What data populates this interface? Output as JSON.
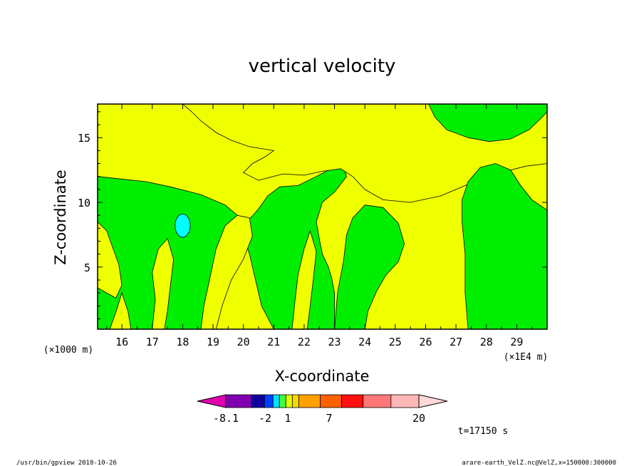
{
  "chart_data": {
    "type": "heatmap",
    "title": "vertical velocity",
    "xlabel": "X-coordinate",
    "ylabel": "Z-coordinate",
    "x_unit_note": "(×1E4 m)",
    "y_unit_note": "(×1000 m)",
    "xlim": [
      15.2,
      30.0
    ],
    "ylim": [
      0.2,
      17.6
    ],
    "x_ticks": [
      16,
      17,
      18,
      19,
      20,
      21,
      22,
      23,
      24,
      25,
      26,
      27,
      28,
      29
    ],
    "y_ticks": [
      5,
      10,
      15
    ],
    "grid": false,
    "background_color": "#f0ff00",
    "legend_placement": "bottom",
    "colorbar": {
      "levels": [
        -8.1,
        -2,
        1,
        7,
        20
      ],
      "level_labels": [
        "-8.1",
        "-2",
        "1",
        "7",
        "20"
      ],
      "colors": [
        "#e000b0",
        "#8000b0",
        "#1000a0",
        "#0040ff",
        "#00e0ff",
        "#40ff40",
        "#e0ff00",
        "#f8d800",
        "#ffa000",
        "#ff6000",
        "#ff1010",
        "#ff7878",
        "#ffb8b8",
        "#ffd8d8"
      ],
      "display_colors": {
        "negative_strong": "#00ffff",
        "weak_positive": "#00ee00",
        "weak_negative": "#f0ff00"
      }
    },
    "regions": [
      {
        "name": "upper-left-green",
        "value_band": "0 to 1",
        "color": "#00ee00",
        "polygon": [
          [
            15.2,
            17.6
          ],
          [
            15.2,
            12.0
          ],
          [
            16.0,
            11.8
          ],
          [
            16.8,
            11.6
          ],
          [
            17.6,
            11.2
          ],
          [
            18.6,
            10.6
          ],
          [
            19.4,
            9.8
          ],
          [
            19.8,
            9.0
          ],
          [
            20.2,
            8.7
          ],
          [
            20.5,
            9.5
          ],
          [
            20.8,
            10.5
          ],
          [
            21.2,
            11.2
          ],
          [
            21.8,
            11.3
          ],
          [
            22.4,
            12.0
          ],
          [
            22.8,
            12.5
          ],
          [
            23.3,
            12.7
          ],
          [
            23.4,
            12.0
          ],
          [
            23.0,
            10.8
          ],
          [
            22.6,
            10.0
          ],
          [
            22.4,
            8.5
          ],
          [
            22.5,
            7.2
          ],
          [
            22.6,
            6.0
          ],
          [
            22.8,
            5.0
          ],
          [
            22.9,
            4.2
          ],
          [
            23.0,
            3.0
          ],
          [
            23.0,
            0.2
          ],
          [
            21.0,
            0.2
          ],
          [
            20.6,
            2.0
          ],
          [
            20.4,
            4.0
          ],
          [
            20.2,
            6.0
          ],
          [
            20.0,
            7.5
          ],
          [
            19.8,
            7.8
          ],
          [
            19.4,
            6.5
          ],
          [
            19.2,
            5.0
          ],
          [
            19.0,
            3.0
          ],
          [
            18.6,
            0.2
          ],
          [
            15.2,
            0.2
          ]
        ]
      },
      {
        "name": "upper-middle-yellow",
        "value_band": "-1 to 0",
        "color": "#f0ff00",
        "polygon": [
          [
            18.0,
            17.6
          ],
          [
            18.3,
            17.0
          ],
          [
            18.6,
            16.3
          ],
          [
            19.1,
            15.4
          ],
          [
            19.6,
            14.8
          ],
          [
            20.2,
            14.3
          ],
          [
            21.0,
            14.0
          ],
          [
            20.7,
            13.5
          ],
          [
            20.3,
            13.0
          ],
          [
            20.0,
            12.3
          ],
          [
            20.5,
            11.7
          ],
          [
            21.3,
            12.2
          ],
          [
            22.0,
            12.1
          ],
          [
            22.6,
            12.4
          ],
          [
            23.2,
            12.6
          ],
          [
            23.6,
            12.0
          ],
          [
            24.0,
            11.0
          ],
          [
            24.6,
            10.2
          ],
          [
            25.5,
            10.0
          ],
          [
            26.5,
            10.5
          ],
          [
            27.5,
            11.5
          ],
          [
            28.3,
            12.2
          ],
          [
            29.3,
            12.8
          ],
          [
            30.0,
            13.0
          ],
          [
            30.0,
            17.6
          ]
        ]
      },
      {
        "name": "top-right-green",
        "value_band": "0 to 1",
        "color": "#00ee00",
        "polygon": [
          [
            26.1,
            17.6
          ],
          [
            26.3,
            16.6
          ],
          [
            26.7,
            15.6
          ],
          [
            27.4,
            15.0
          ],
          [
            28.1,
            14.7
          ],
          [
            28.8,
            14.9
          ],
          [
            29.4,
            15.6
          ],
          [
            29.8,
            16.5
          ],
          [
            30.0,
            17.0
          ],
          [
            30.0,
            17.6
          ]
        ]
      },
      {
        "name": "right-green-column",
        "value_band": "0 to 1",
        "color": "#00ee00",
        "polygon": [
          [
            27.4,
            0.2
          ],
          [
            27.3,
            3.0
          ],
          [
            27.3,
            6.0
          ],
          [
            27.2,
            8.5
          ],
          [
            27.2,
            10.2
          ],
          [
            27.4,
            11.6
          ],
          [
            27.8,
            12.7
          ],
          [
            28.3,
            13.0
          ],
          [
            28.8,
            12.5
          ],
          [
            29.1,
            11.4
          ],
          [
            29.5,
            10.2
          ],
          [
            30.0,
            9.4
          ],
          [
            30.0,
            0.2
          ]
        ]
      },
      {
        "name": "center-green-blob",
        "value_band": "0 to 1",
        "color": "#00ee00",
        "polygon": [
          [
            23.0,
            0.2
          ],
          [
            23.1,
            3.0
          ],
          [
            23.3,
            5.5
          ],
          [
            23.4,
            7.5
          ],
          [
            23.6,
            8.8
          ],
          [
            24.0,
            9.8
          ],
          [
            24.6,
            9.6
          ],
          [
            25.1,
            8.4
          ],
          [
            25.3,
            6.8
          ],
          [
            25.1,
            5.4
          ],
          [
            24.7,
            4.4
          ],
          [
            24.4,
            3.2
          ],
          [
            24.1,
            1.6
          ],
          [
            24.0,
            0.2
          ]
        ]
      },
      {
        "name": "left-yellow-band",
        "value_band": "-1 to 0",
        "color": "#f0ff00",
        "polygon": [
          [
            15.2,
            8.5
          ],
          [
            15.5,
            7.8
          ],
          [
            15.7,
            6.5
          ],
          [
            15.9,
            5.2
          ],
          [
            16.0,
            3.6
          ],
          [
            15.8,
            2.6
          ],
          [
            15.5,
            3.0
          ],
          [
            15.2,
            3.4
          ]
        ]
      },
      {
        "name": "mid-left-yellow-streak",
        "value_band": "-1 to 0",
        "color": "#f0ff00",
        "polygon": [
          [
            17.0,
            0.2
          ],
          [
            17.1,
            2.5
          ],
          [
            17.0,
            4.6
          ],
          [
            17.2,
            6.4
          ],
          [
            17.5,
            7.2
          ],
          [
            17.7,
            5.6
          ],
          [
            17.6,
            3.6
          ],
          [
            17.5,
            1.6
          ],
          [
            17.4,
            0.2
          ]
        ]
      },
      {
        "name": "center-left-yellow-streak",
        "value_band": "-1 to 0",
        "color": "#f0ff00",
        "polygon": [
          [
            18.6,
            0.2
          ],
          [
            18.7,
            2.0
          ],
          [
            18.9,
            4.2
          ],
          [
            19.1,
            6.4
          ],
          [
            19.4,
            8.2
          ],
          [
            19.8,
            9.0
          ],
          [
            20.2,
            8.8
          ],
          [
            20.3,
            7.4
          ],
          [
            20.0,
            5.6
          ],
          [
            19.6,
            4.0
          ],
          [
            19.3,
            2.0
          ],
          [
            19.1,
            0.2
          ]
        ]
      },
      {
        "name": "center-yellow-streak",
        "value_band": "-1 to 0",
        "color": "#f0ff00",
        "polygon": [
          [
            21.6,
            0.2
          ],
          [
            21.7,
            2.4
          ],
          [
            21.8,
            4.4
          ],
          [
            22.0,
            6.4
          ],
          [
            22.2,
            7.8
          ],
          [
            22.4,
            6.2
          ],
          [
            22.3,
            4.0
          ],
          [
            22.2,
            2.0
          ],
          [
            22.1,
            0.2
          ]
        ]
      },
      {
        "name": "yellow-triangle-near-16",
        "value_band": "-1 to 0",
        "color": "#f0ff00",
        "polygon": [
          [
            15.6,
            0.2
          ],
          [
            15.8,
            1.5
          ],
          [
            16.0,
            3.0
          ],
          [
            16.2,
            1.6
          ],
          [
            16.3,
            0.2
          ]
        ]
      }
    ],
    "extremes": [
      {
        "name": "min-cyan-blob",
        "value_band": "-8.1 to -2",
        "x": 18.0,
        "y": 8.2,
        "rx": 0.25,
        "ry": 0.9,
        "color": "#00ffff"
      }
    ]
  },
  "labels": {
    "time": "t=17150 s",
    "footer_left": "/usr/bin/gpview   2010-10-26",
    "footer_right": "arare-earth_VelZ.nc@VelZ,x=150000:300000"
  }
}
